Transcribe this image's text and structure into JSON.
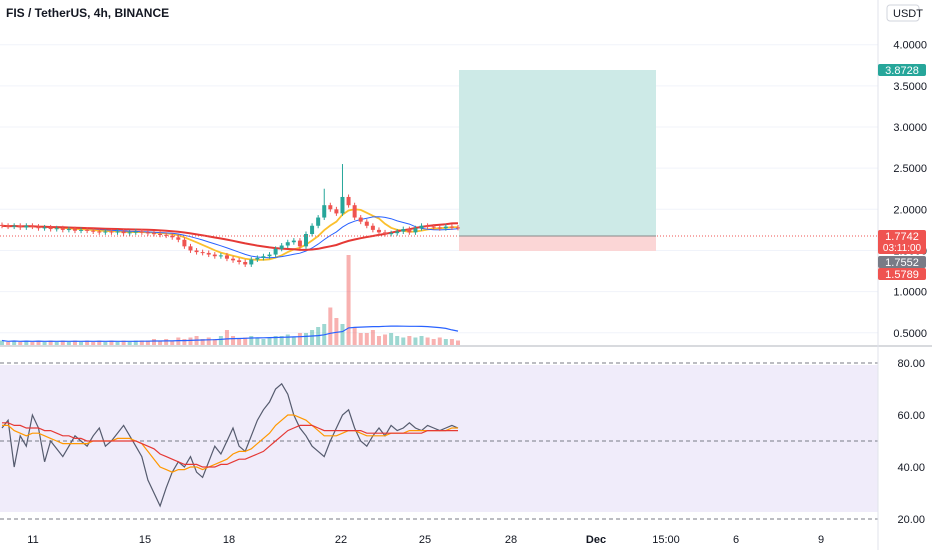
{
  "header": {
    "title": "FIS / TetherUS, 4h, BINANCE",
    "currency": "USDT"
  },
  "colors": {
    "up": "#26a69a",
    "down": "#ef5350",
    "ma_red": "#e53935",
    "ma_yellow": "#fbc02d",
    "ma_blue": "#2962ff",
    "vol_ma": "#2962ff",
    "rsi_line": "#555b6e",
    "rsi_ma_orange": "#ff9800",
    "rsi_ma_red": "#e53935",
    "rsi_bg": "#f0ecfa",
    "target_zone": "#cdeae7",
    "stop_zone": "#fbd6d6"
  },
  "chart_data": [
    {
      "type": "candlestick",
      "title": "FIS / TetherUS, 4h, BINANCE",
      "ylim": [
        0.4,
        4.3
      ],
      "y_ticks": [
        "4.0000",
        "3.5000",
        "3.0000",
        "2.5000",
        "2.0000",
        "1.5000",
        "1.0000",
        "0.5000"
      ],
      "x_ticks": [
        "11",
        "15",
        "18",
        "22",
        "25",
        "28",
        "Dec",
        "15:00",
        "6",
        "9"
      ],
      "price_tags": [
        {
          "label": "3.8728",
          "value": 3.8728,
          "color": "#26a69a"
        },
        {
          "label": "1.7742",
          "value": 1.7742,
          "color": "#ef5350",
          "sub": "03:11:00"
        },
        {
          "label": "1.7552",
          "value": 1.7552,
          "color": "#787b86"
        },
        {
          "label": "1.5789",
          "value": 1.5789,
          "color": "#ef5350"
        }
      ],
      "position": {
        "entry": 1.7742,
        "target": 3.8728,
        "stop": 1.5789
      },
      "series": [
        {
          "values": [
            1.8,
            1.79,
            1.8,
            1.78,
            1.8,
            1.79,
            1.77,
            1.78,
            1.76,
            1.77,
            1.75,
            1.76,
            1.74,
            1.75,
            1.74,
            1.73,
            1.72,
            1.73,
            1.72,
            1.73,
            1.71,
            1.72,
            1.73,
            1.72,
            1.71,
            1.7,
            1.69,
            1.68,
            1.66,
            1.63,
            1.55,
            1.5,
            1.48,
            1.47,
            1.45,
            1.43,
            1.44,
            1.4,
            1.38,
            1.36,
            1.33,
            1.39,
            1.41,
            1.43,
            1.45,
            1.52,
            1.56,
            1.6,
            1.62,
            1.55,
            1.7,
            1.8,
            1.9,
            2.05,
            2.0,
            1.95,
            2.15,
            2.05,
            1.9,
            1.85,
            1.8,
            1.75,
            1.72,
            1.7,
            1.71,
            1.73,
            1.76,
            1.72,
            1.77,
            1.8,
            1.79,
            1.78,
            1.77,
            1.79,
            1.78,
            1.7742
          ]
        }
      ]
    },
    {
      "type": "bar",
      "title": "Volume",
      "values": [
        3,
        2,
        3,
        2,
        3,
        2,
        3,
        2,
        3,
        2,
        3,
        2,
        3,
        2,
        3,
        2,
        3,
        2,
        3,
        2,
        3,
        2,
        3,
        3,
        3,
        4,
        3,
        4,
        3,
        5,
        4,
        5,
        6,
        4,
        5,
        4,
        6,
        10,
        6,
        4,
        5,
        6,
        5,
        4,
        5,
        6,
        6,
        7,
        5,
        8,
        8,
        10,
        12,
        14,
        25,
        18,
        14,
        60,
        12,
        8,
        8,
        10,
        6,
        7,
        8,
        6,
        5,
        6,
        5,
        6,
        5,
        4,
        5,
        4,
        4,
        3
      ]
    },
    {
      "type": "line",
      "title": "RSI",
      "ylim": [
        10,
        85
      ],
      "y_ticks": [
        "80.00",
        "60.00",
        "40.00",
        "20.00"
      ],
      "bands": [
        80,
        50,
        20
      ],
      "series": [
        {
          "values": [
            55,
            58,
            40,
            52,
            48,
            60,
            55,
            42,
            50,
            47,
            44,
            48,
            52,
            50,
            48,
            52,
            55,
            48,
            50,
            53,
            56,
            52,
            48,
            44,
            35,
            30,
            25,
            32,
            38,
            42,
            40,
            44,
            38,
            36,
            42,
            48,
            45,
            50,
            55,
            48,
            46,
            52,
            58,
            62,
            65,
            70,
            72,
            68,
            60,
            55,
            52,
            48,
            46,
            44,
            50,
            55,
            60,
            62,
            55,
            50,
            48,
            52,
            55,
            52,
            56,
            54,
            55,
            57,
            55,
            54,
            56,
            55,
            54,
            55,
            56,
            55
          ]
        },
        {
          "values": [
            56,
            56,
            54,
            53,
            52,
            53,
            53,
            52,
            51,
            50,
            49,
            49,
            49,
            49,
            49,
            50,
            50,
            50,
            50,
            51,
            51,
            51,
            50,
            49,
            46,
            43,
            40,
            39,
            38,
            39,
            39,
            40,
            40,
            39,
            40,
            41,
            42,
            43,
            45,
            46,
            46,
            47,
            49,
            51,
            53,
            56,
            58,
            60,
            60,
            59,
            58,
            56,
            54,
            52,
            52,
            52,
            53,
            54,
            54,
            53,
            52,
            52,
            52,
            52,
            53,
            53,
            53,
            54,
            54,
            54,
            54,
            54,
            54,
            54,
            55,
            55
          ]
        },
        {
          "values": [
            57,
            57,
            56,
            56,
            55,
            55,
            55,
            54,
            54,
            53,
            52,
            52,
            51,
            51,
            50,
            50,
            50,
            50,
            50,
            50,
            50,
            50,
            50,
            49,
            48,
            47,
            45,
            44,
            43,
            42,
            41,
            41,
            41,
            40,
            40,
            40,
            41,
            41,
            42,
            43,
            43,
            44,
            45,
            46,
            48,
            50,
            52,
            54,
            55,
            56,
            56,
            56,
            55,
            54,
            54,
            54,
            54,
            54,
            54,
            54,
            53,
            53,
            53,
            53,
            53,
            53,
            53,
            53,
            53,
            53,
            54,
            54,
            54,
            54,
            54,
            54
          ]
        }
      ]
    }
  ]
}
